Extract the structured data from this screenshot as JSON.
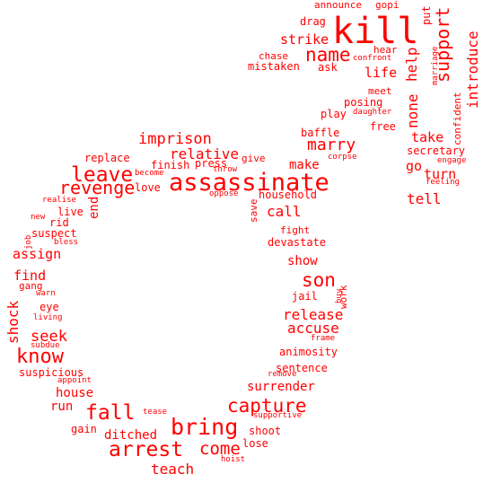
{
  "color": "#ff0000",
  "words": [
    {
      "text": "kill",
      "vertical": false
    },
    {
      "text": "assassinate",
      "vertical": false
    },
    {
      "text": "bring",
      "vertical": false
    },
    {
      "text": "leave",
      "vertical": false
    },
    {
      "text": "know",
      "vertical": false
    },
    {
      "text": "arrest",
      "vertical": false
    },
    {
      "text": "fall",
      "vertical": false
    },
    {
      "text": "capture",
      "vertical": false
    },
    {
      "text": "name",
      "vertical": false
    },
    {
      "text": "son",
      "vertical": false
    },
    {
      "text": "support",
      "vertical": true
    },
    {
      "text": "revenge",
      "vertical": false
    },
    {
      "text": "come",
      "vertical": false
    },
    {
      "text": "marry",
      "vertical": false
    },
    {
      "text": "imprison",
      "vertical": false
    },
    {
      "text": "relative",
      "vertical": false
    },
    {
      "text": "release",
      "vertical": false
    },
    {
      "text": "accuse",
      "vertical": false
    },
    {
      "text": "seek",
      "vertical": false
    },
    {
      "text": "teach",
      "vertical": false
    },
    {
      "text": "introduce",
      "vertical": true
    },
    {
      "text": "help",
      "vertical": true
    },
    {
      "text": "none",
      "vertical": true
    },
    {
      "text": "strike",
      "vertical": false
    },
    {
      "text": "life",
      "vertical": false
    },
    {
      "text": "take",
      "vertical": false
    },
    {
      "text": "tell",
      "vertical": false
    },
    {
      "text": "turn",
      "vertical": false
    },
    {
      "text": "call",
      "vertical": false
    },
    {
      "text": "make",
      "vertical": false
    },
    {
      "text": "shock",
      "vertical": true
    },
    {
      "text": "assign",
      "vertical": false
    },
    {
      "text": "find",
      "vertical": false
    },
    {
      "text": "house",
      "vertical": false
    },
    {
      "text": "run",
      "vertical": false
    },
    {
      "text": "surrender",
      "vertical": false
    },
    {
      "text": "ditched",
      "vertical": false
    },
    {
      "text": "go",
      "vertical": false
    },
    {
      "text": "end",
      "vertical": true
    },
    {
      "text": "show",
      "vertical": false
    },
    {
      "text": "mistaken",
      "vertical": false
    },
    {
      "text": "chase",
      "vertical": false
    },
    {
      "text": "drag",
      "vertical": false
    },
    {
      "text": "announce",
      "vertical": false
    },
    {
      "text": "gopi",
      "vertical": false
    },
    {
      "text": "hear",
      "vertical": false
    },
    {
      "text": "put",
      "vertical": true
    },
    {
      "text": "ask",
      "vertical": false
    },
    {
      "text": "meet",
      "vertical": false
    },
    {
      "text": "posing",
      "vertical": false
    },
    {
      "text": "play",
      "vertical": false
    },
    {
      "text": "free",
      "vertical": false
    },
    {
      "text": "baffle",
      "vertical": false
    },
    {
      "text": "secretary",
      "vertical": false
    },
    {
      "text": "replace",
      "vertical": false
    },
    {
      "text": "finish",
      "vertical": false
    },
    {
      "text": "press",
      "vertical": false
    },
    {
      "text": "give",
      "vertical": false
    },
    {
      "text": "love",
      "vertical": false
    },
    {
      "text": "household",
      "vertical": false
    },
    {
      "text": "live",
      "vertical": false
    },
    {
      "text": "rid",
      "vertical": false
    },
    {
      "text": "suspect",
      "vertical": false
    },
    {
      "text": "fight",
      "vertical": false
    },
    {
      "text": "devastate",
      "vertical": false
    },
    {
      "text": "gang",
      "vertical": false
    },
    {
      "text": "eye",
      "vertical": false
    },
    {
      "text": "jail",
      "vertical": false
    },
    {
      "text": "animosity",
      "vertical": false
    },
    {
      "text": "sentence",
      "vertical": false
    },
    {
      "text": "suspicious",
      "vertical": false
    },
    {
      "text": "gain",
      "vertical": false
    },
    {
      "text": "shoot",
      "vertical": false
    },
    {
      "text": "lose",
      "vertical": false
    },
    {
      "text": "work",
      "vertical": true
    },
    {
      "text": "save",
      "vertical": true
    },
    {
      "text": "confident",
      "vertical": true
    },
    {
      "text": "confront",
      "vertical": false
    },
    {
      "text": "daughter",
      "vertical": false
    },
    {
      "text": "corpse",
      "vertical": false
    },
    {
      "text": "become",
      "vertical": false
    },
    {
      "text": "throw",
      "vertical": false
    },
    {
      "text": "oppose",
      "vertical": false
    },
    {
      "text": "realise",
      "vertical": false
    },
    {
      "text": "new",
      "vertical": false
    },
    {
      "text": "bless",
      "vertical": false
    },
    {
      "text": "warn",
      "vertical": false
    },
    {
      "text": "living",
      "vertical": false
    },
    {
      "text": "subdue",
      "vertical": false
    },
    {
      "text": "appoint",
      "vertical": false
    },
    {
      "text": "tease",
      "vertical": false
    },
    {
      "text": "frame",
      "vertical": false
    },
    {
      "text": "remove",
      "vertical": false
    },
    {
      "text": "supportive",
      "vertical": false
    },
    {
      "text": "hoist",
      "vertical": false
    },
    {
      "text": "engage",
      "vertical": false
    },
    {
      "text": "feeling",
      "vertical": false
    },
    {
      "text": "marriage",
      "vertical": true
    },
    {
      "text": "job",
      "vertical": true
    },
    {
      "text": "buy",
      "vertical": true
    }
  ]
}
